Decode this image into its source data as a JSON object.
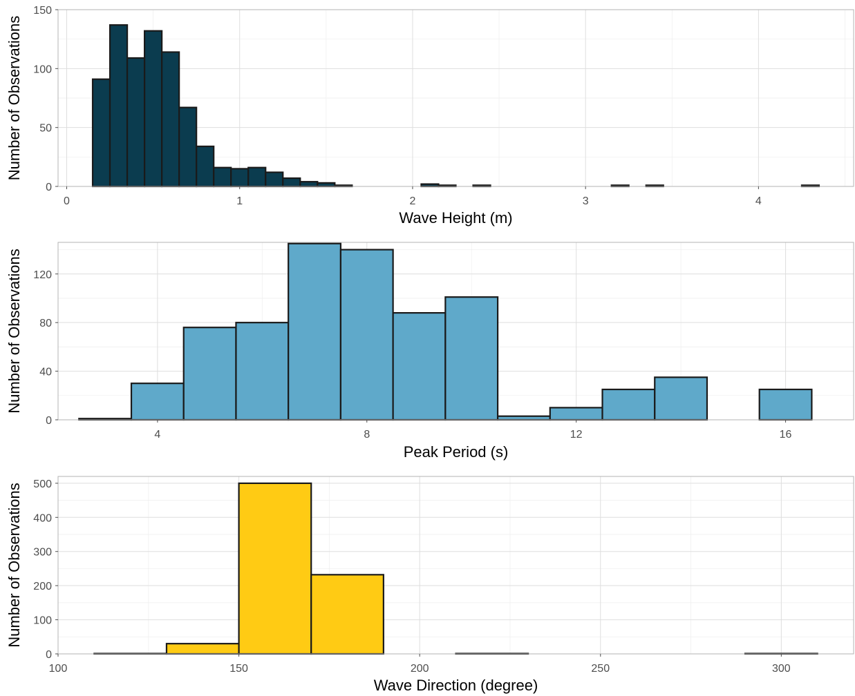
{
  "chart_data": [
    {
      "type": "histogram",
      "xlabel": "Wave Height (m)",
      "ylabel": "Number of Observations",
      "fill": "#0b3c4f",
      "xlim": [
        -0.05,
        4.55
      ],
      "ylim": [
        0,
        150
      ],
      "x_ticks": [
        0,
        1,
        2,
        3,
        4
      ],
      "y_ticks": [
        0,
        50,
        100,
        150
      ],
      "bins": [
        {
          "x0": 0.15,
          "x1": 0.25,
          "count": 91
        },
        {
          "x0": 0.25,
          "x1": 0.35,
          "count": 137
        },
        {
          "x0": 0.35,
          "x1": 0.45,
          "count": 109
        },
        {
          "x0": 0.45,
          "x1": 0.55,
          "count": 132
        },
        {
          "x0": 0.55,
          "x1": 0.65,
          "count": 114
        },
        {
          "x0": 0.65,
          "x1": 0.75,
          "count": 67
        },
        {
          "x0": 0.75,
          "x1": 0.85,
          "count": 34
        },
        {
          "x0": 0.85,
          "x1": 0.95,
          "count": 16
        },
        {
          "x0": 0.95,
          "x1": 1.05,
          "count": 15
        },
        {
          "x0": 1.05,
          "x1": 1.15,
          "count": 16
        },
        {
          "x0": 1.15,
          "x1": 1.25,
          "count": 12
        },
        {
          "x0": 1.25,
          "x1": 1.35,
          "count": 7
        },
        {
          "x0": 1.35,
          "x1": 1.45,
          "count": 4
        },
        {
          "x0": 1.45,
          "x1": 1.55,
          "count": 3
        },
        {
          "x0": 1.55,
          "x1": 1.65,
          "count": 1
        },
        {
          "x0": 2.05,
          "x1": 2.15,
          "count": 2
        },
        {
          "x0": 2.15,
          "x1": 2.25,
          "count": 1
        },
        {
          "x0": 2.35,
          "x1": 2.45,
          "count": 1
        },
        {
          "x0": 3.15,
          "x1": 3.25,
          "count": 1
        },
        {
          "x0": 3.35,
          "x1": 3.45,
          "count": 1
        },
        {
          "x0": 4.25,
          "x1": 4.35,
          "count": 1
        }
      ]
    },
    {
      "type": "histogram",
      "xlabel": "Peak Period (s)",
      "ylabel": "Number of Observations",
      "fill": "#5fa9ca",
      "xlim": [
        2.1,
        17.3
      ],
      "ylim": [
        0,
        146
      ],
      "x_ticks": [
        4,
        8,
        12,
        16
      ],
      "y_ticks": [
        0,
        40,
        80,
        120
      ],
      "bins": [
        {
          "x0": 2.5,
          "x1": 3.5,
          "count": 1
        },
        {
          "x0": 3.5,
          "x1": 4.5,
          "count": 30
        },
        {
          "x0": 4.5,
          "x1": 5.5,
          "count": 76
        },
        {
          "x0": 5.5,
          "x1": 6.5,
          "count": 80
        },
        {
          "x0": 6.5,
          "x1": 7.5,
          "count": 145
        },
        {
          "x0": 7.5,
          "x1": 8.5,
          "count": 140
        },
        {
          "x0": 8.5,
          "x1": 9.5,
          "count": 88
        },
        {
          "x0": 9.5,
          "x1": 10.5,
          "count": 101
        },
        {
          "x0": 10.5,
          "x1": 11.5,
          "count": 3
        },
        {
          "x0": 11.5,
          "x1": 12.5,
          "count": 10
        },
        {
          "x0": 12.5,
          "x1": 13.5,
          "count": 25
        },
        {
          "x0": 13.5,
          "x1": 14.5,
          "count": 35
        },
        {
          "x0": 14.5,
          "x1": 15.5,
          "count": 0
        },
        {
          "x0": 15.5,
          "x1": 16.5,
          "count": 25
        }
      ]
    },
    {
      "type": "histogram",
      "xlabel": "Wave Direction (degree)",
      "ylabel": "Number of Observations",
      "fill": "#ffcb14",
      "xlim": [
        100,
        320
      ],
      "ylim": [
        0,
        520
      ],
      "x_ticks": [
        100,
        150,
        200,
        250,
        300
      ],
      "y_ticks": [
        0,
        100,
        200,
        300,
        400,
        500
      ],
      "bins": [
        {
          "x0": 110,
          "x1": 130,
          "count": 1
        },
        {
          "x0": 130,
          "x1": 150,
          "count": 30
        },
        {
          "x0": 150,
          "x1": 170,
          "count": 500
        },
        {
          "x0": 170,
          "x1": 190,
          "count": 232
        },
        {
          "x0": 190,
          "x1": 210,
          "count": 0
        },
        {
          "x0": 210,
          "x1": 230,
          "count": 1
        },
        {
          "x0": 230,
          "x1": 250,
          "count": 0
        },
        {
          "x0": 250,
          "x1": 270,
          "count": 0
        },
        {
          "x0": 270,
          "x1": 290,
          "count": 0
        },
        {
          "x0": 290,
          "x1": 310,
          "count": 1
        }
      ]
    }
  ]
}
